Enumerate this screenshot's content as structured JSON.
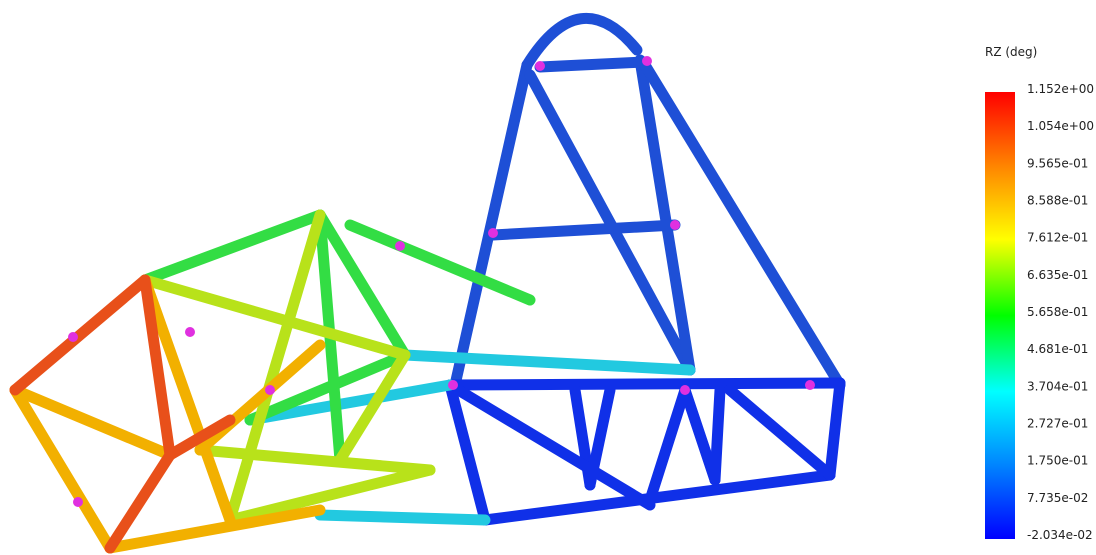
{
  "legend": {
    "title": "RZ (deg)",
    "labels": [
      "1.152e+00",
      "1.054e+00",
      "9.565e-01",
      "8.588e-01",
      "7.612e-01",
      "6.635e-01",
      "5.658e-01",
      "4.681e-01",
      "3.704e-01",
      "2.727e-01",
      "1.750e-01",
      "7.735e-02",
      "-2.034e-02"
    ]
  }
}
